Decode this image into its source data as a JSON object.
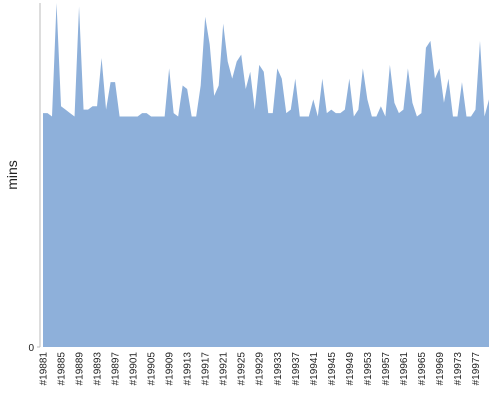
{
  "chart_data": {
    "type": "area",
    "y_label": "mins",
    "color": "#8eb0da",
    "categories": [
      "#19881",
      null,
      null,
      null,
      "#19885",
      null,
      null,
      null,
      "#19889",
      null,
      null,
      null,
      "#19893",
      null,
      null,
      null,
      "#19897",
      null,
      null,
      null,
      "#19901",
      null,
      null,
      null,
      "#19905",
      null,
      null,
      null,
      "#19909",
      null,
      null,
      null,
      "#19913",
      null,
      null,
      null,
      "#19917",
      null,
      null,
      null,
      "#19921",
      null,
      null,
      null,
      "#19925",
      null,
      null,
      null,
      "#19929",
      null,
      null,
      null,
      "#19933",
      null,
      null,
      null,
      "#19937",
      null,
      null,
      null,
      "#19941",
      null,
      null,
      null,
      "#19945",
      null,
      null,
      null,
      "#19949",
      null,
      null,
      null,
      "#19953",
      null,
      null,
      null,
      "#19957",
      null,
      null,
      null,
      "#19961",
      null,
      null,
      null,
      "#19965",
      null,
      null,
      null,
      "#19969",
      null,
      null,
      null,
      "#19973",
      null,
      null,
      null,
      "#19977",
      null,
      null,
      null
    ],
    "values": [
      68,
      68,
      67,
      100,
      70,
      69,
      68,
      67,
      99,
      69,
      69,
      70,
      70,
      84,
      69,
      77,
      77,
      67,
      67,
      67,
      67,
      67,
      68,
      68,
      67,
      67,
      67,
      67,
      81,
      68,
      67,
      76,
      75,
      67,
      67,
      76,
      96,
      88,
      73,
      76,
      94,
      83,
      78,
      83,
      85,
      75,
      80,
      69,
      82,
      80,
      68,
      68,
      81,
      78,
      68,
      69,
      78,
      67,
      67,
      67,
      72,
      67,
      78,
      68,
      69,
      68,
      68,
      69,
      78,
      67,
      69,
      81,
      72,
      67,
      67,
      70,
      67,
      82,
      71,
      68,
      69,
      81,
      71,
      67,
      68,
      87,
      89,
      78,
      81,
      71,
      78,
      67,
      67,
      77,
      67,
      67,
      69,
      89,
      67,
      72
    ],
    "ylim": [
      0,
      100
    ],
    "yticks": [
      0
    ]
  }
}
